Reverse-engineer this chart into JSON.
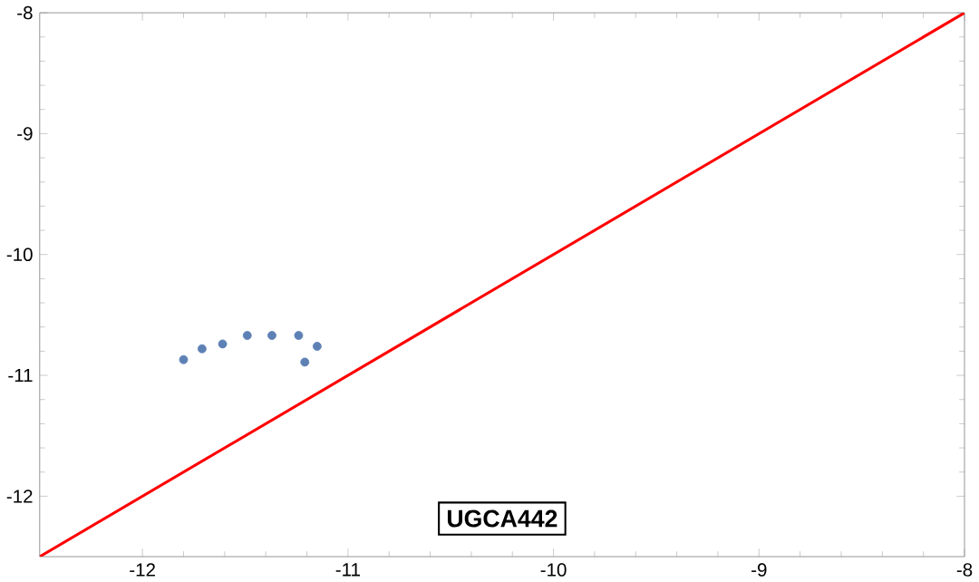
{
  "chart_data": {
    "type": "scatter",
    "xlim": [
      -12.5,
      -8
    ],
    "ylim": [
      -12.5,
      -8
    ],
    "xticks": [
      -12,
      -11,
      -10,
      -9,
      -8
    ],
    "yticks": [
      -12,
      -11,
      -10,
      -9,
      -8
    ],
    "grid": false,
    "annotations": [
      "UGCA442"
    ],
    "series": [
      {
        "color": "#5e81b5",
        "marker": "circle",
        "x": [
          -11.8,
          -11.71,
          -11.61,
          -11.49,
          -11.37,
          -11.24,
          -11.15,
          -11.21
        ],
        "values": [
          -10.87,
          -10.78,
          -10.74,
          -10.67,
          -10.67,
          -10.67,
          -10.76,
          -10.89
        ]
      },
      {
        "type": "line",
        "color": "#ff0000",
        "x": [
          -12.5,
          -8
        ],
        "values": [
          -12.5,
          -8
        ],
        "marker": "none",
        "line_style": "solid"
      }
    ]
  }
}
